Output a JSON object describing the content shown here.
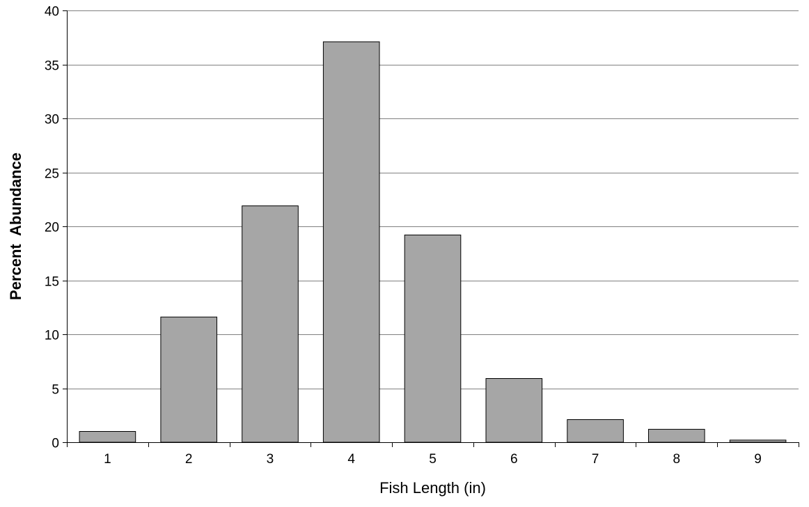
{
  "chart_data": {
    "type": "bar",
    "categories": [
      "1",
      "2",
      "3",
      "4",
      "5",
      "6",
      "7",
      "8",
      "9"
    ],
    "values": [
      1.0,
      11.6,
      21.9,
      37.1,
      19.2,
      5.9,
      2.1,
      1.2,
      0.2
    ],
    "xlabel": "Fish Length (in)",
    "ylabel": "Percent  Abundance",
    "ylim": [
      0,
      40
    ],
    "yticks": [
      "0",
      "5",
      "10",
      "15",
      "20",
      "25",
      "30",
      "35",
      "40"
    ],
    "grid": "horizontal",
    "legend": "none",
    "colors": {
      "bar_fill": "#a6a6a6",
      "bar_stroke": "#000000",
      "gridline": "#808080",
      "axis": "#000000"
    }
  }
}
